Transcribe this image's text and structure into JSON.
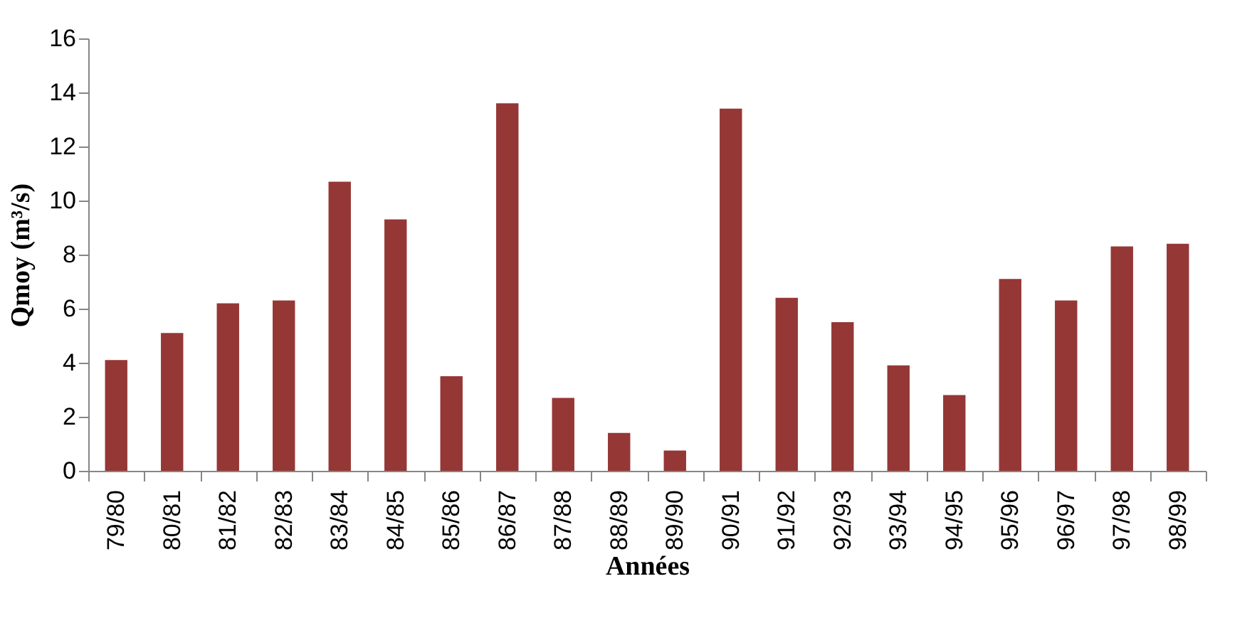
{
  "chart_data": {
    "type": "bar",
    "xlabel": "Années",
    "ylabel": "Qmoy (m³/s)",
    "categories": [
      "79/80",
      "80/81",
      "81/82",
      "82/83",
      "83/84",
      "84/85",
      "85/86",
      "86/87",
      "87/88",
      "88/89",
      "89/90",
      "90/91",
      "91/92",
      "92/93",
      "93/94",
      "94/95",
      "95/96",
      "96/97",
      "97/98",
      "98/99"
    ],
    "values": [
      4.1,
      5.1,
      6.2,
      6.3,
      10.7,
      9.3,
      3.5,
      13.6,
      2.7,
      1.4,
      0.75,
      13.4,
      6.4,
      5.5,
      3.9,
      2.8,
      7.1,
      6.3,
      8.3,
      8.4
    ],
    "color": "#953735",
    "ylim": [
      0,
      16
    ],
    "yticks": [
      0,
      2,
      4,
      6,
      8,
      10,
      12,
      14,
      16
    ],
    "grid": false
  }
}
